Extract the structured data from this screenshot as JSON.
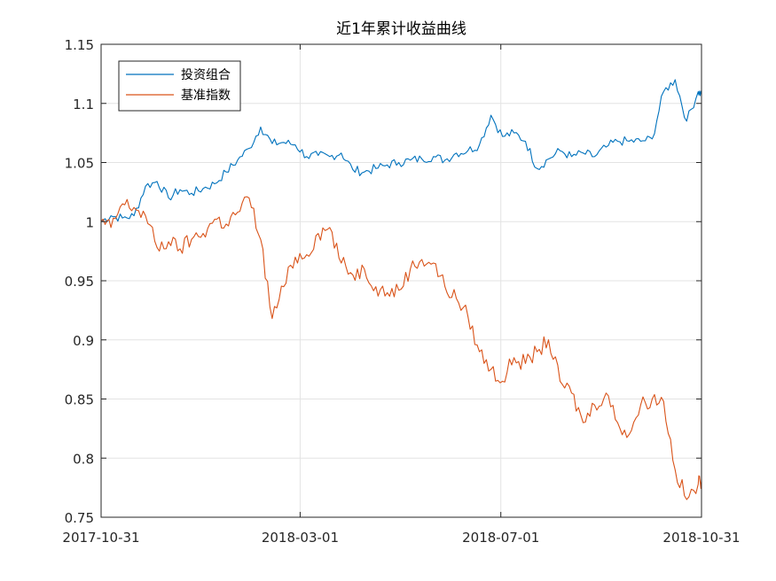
{
  "chart_data": {
    "type": "line",
    "title": "近1年累计收益曲线",
    "xlabel": "",
    "ylabel": "",
    "x_range": [
      "2017-10-31",
      "2018-10-31"
    ],
    "x_ticks": [
      "2017-10-31",
      "2018-03-01",
      "2018-07-01",
      "2018-10-31"
    ],
    "ylim": [
      0.75,
      1.15
    ],
    "y_ticks": [
      "0.75",
      "0.8",
      "0.85",
      "0.9",
      "0.95",
      "1",
      "1.05",
      "1.1",
      "1.15"
    ],
    "grid": true,
    "legend_position": "top-left",
    "series": [
      {
        "name": "投资组合",
        "color": "#0072BD",
        "x": [
          "2017-10-31",
          "2017-11-06",
          "2017-11-13",
          "2017-11-20",
          "2017-11-27",
          "2017-12-04",
          "2017-12-11",
          "2017-12-18",
          "2017-12-25",
          "2018-01-01",
          "2018-01-08",
          "2018-01-15",
          "2018-01-22",
          "2018-01-29",
          "2018-02-05",
          "2018-02-12",
          "2018-02-19",
          "2018-02-26",
          "2018-03-05",
          "2018-03-12",
          "2018-03-19",
          "2018-03-26",
          "2018-04-02",
          "2018-04-09",
          "2018-04-16",
          "2018-04-23",
          "2018-04-30",
          "2018-05-07",
          "2018-05-14",
          "2018-05-21",
          "2018-05-28",
          "2018-06-04",
          "2018-06-11",
          "2018-06-18",
          "2018-06-25",
          "2018-07-02",
          "2018-07-09",
          "2018-07-16",
          "2018-07-23",
          "2018-07-30",
          "2018-08-06",
          "2018-08-13",
          "2018-08-20",
          "2018-08-27",
          "2018-09-03",
          "2018-09-10",
          "2018-09-17",
          "2018-09-24",
          "2018-10-01",
          "2018-10-08",
          "2018-10-15",
          "2018-10-22",
          "2018-10-29",
          "2018-10-31"
        ],
        "values": [
          1.0,
          1.005,
          1.003,
          1.005,
          1.03,
          1.034,
          1.02,
          1.027,
          1.024,
          1.028,
          1.032,
          1.042,
          1.052,
          1.062,
          1.08,
          1.066,
          1.067,
          1.065,
          1.055,
          1.056,
          1.055,
          1.058,
          1.044,
          1.042,
          1.045,
          1.048,
          1.05,
          1.052,
          1.053,
          1.055,
          1.052,
          1.058,
          1.06,
          1.065,
          1.09,
          1.072,
          1.075,
          1.068,
          1.045,
          1.053,
          1.06,
          1.055,
          1.058,
          1.055,
          1.063,
          1.068,
          1.068,
          1.068,
          1.07,
          1.11,
          1.12,
          1.085,
          1.11,
          1.108
        ]
      },
      {
        "name": "基准指数",
        "color": "#D95319",
        "x": [
          "2017-10-31",
          "2017-11-06",
          "2017-11-13",
          "2017-11-20",
          "2017-11-27",
          "2017-12-04",
          "2017-12-11",
          "2017-12-18",
          "2017-12-25",
          "2018-01-01",
          "2018-01-08",
          "2018-01-15",
          "2018-01-22",
          "2018-01-29",
          "2018-02-05",
          "2018-02-12",
          "2018-02-19",
          "2018-02-26",
          "2018-03-05",
          "2018-03-12",
          "2018-03-19",
          "2018-03-26",
          "2018-04-02",
          "2018-04-09",
          "2018-04-16",
          "2018-04-23",
          "2018-04-30",
          "2018-05-07",
          "2018-05-14",
          "2018-05-21",
          "2018-05-28",
          "2018-06-04",
          "2018-06-11",
          "2018-06-18",
          "2018-06-25",
          "2018-07-02",
          "2018-07-09",
          "2018-07-16",
          "2018-07-23",
          "2018-07-30",
          "2018-08-06",
          "2018-08-13",
          "2018-08-20",
          "2018-08-27",
          "2018-09-03",
          "2018-09-10",
          "2018-09-17",
          "2018-09-24",
          "2018-10-01",
          "2018-10-08",
          "2018-10-15",
          "2018-10-22",
          "2018-10-29",
          "2018-10-31"
        ],
        "values": [
          1.0,
          0.995,
          1.015,
          1.012,
          1.005,
          0.978,
          0.983,
          0.977,
          0.985,
          0.99,
          1.002,
          0.998,
          1.008,
          1.02,
          0.985,
          0.918,
          0.945,
          0.97,
          0.972,
          0.99,
          0.995,
          0.965,
          0.955,
          0.96,
          0.945,
          0.94,
          0.942,
          0.96,
          0.968,
          0.965,
          0.945,
          0.935,
          0.92,
          0.89,
          0.875,
          0.865,
          0.885,
          0.88,
          0.89,
          0.9,
          0.865,
          0.855,
          0.83,
          0.845,
          0.855,
          0.83,
          0.82,
          0.845,
          0.85,
          0.848,
          0.79,
          0.765,
          0.778,
          0.782
        ]
      }
    ]
  }
}
